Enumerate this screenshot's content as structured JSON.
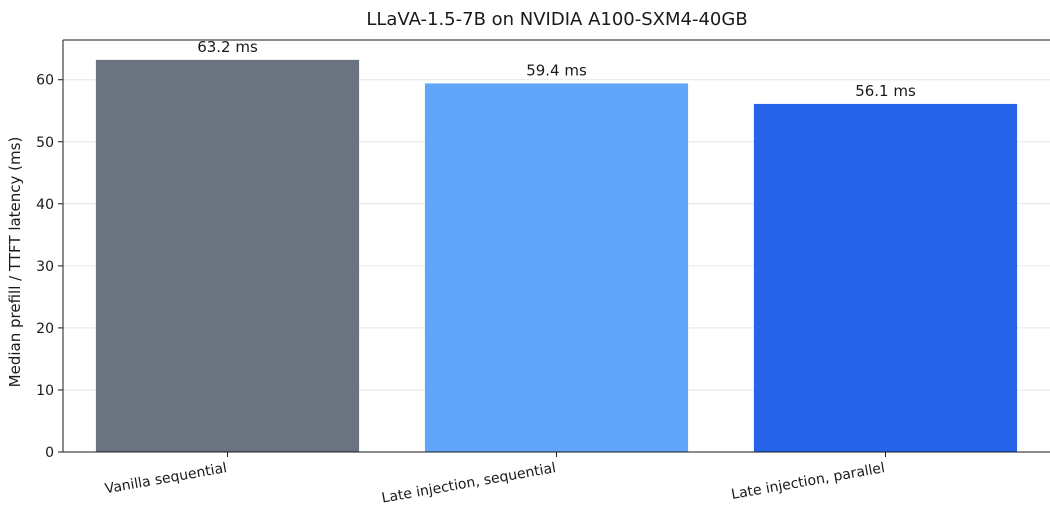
{
  "chart_data": {
    "type": "bar",
    "title": "LLaVA-1.5-7B on NVIDIA A100-SXM4-40GB",
    "xlabel": "",
    "ylabel": "Median prefill / TTFT latency (ms)",
    "categories": [
      "Vanilla sequential",
      "Late injection, sequential",
      "Late injection, parallel"
    ],
    "values": [
      63.2,
      59.4,
      56.1
    ],
    "data_labels": [
      "63.2 ms",
      "59.4 ms",
      "56.1 ms"
    ],
    "colors": [
      "#6b7280",
      "#60a5fa",
      "#2563eb"
    ],
    "ylim": [
      0,
      66.4
    ],
    "yticks": [
      0,
      10,
      20,
      30,
      40,
      50,
      60
    ],
    "grid": "horizontal",
    "legend": "none"
  }
}
